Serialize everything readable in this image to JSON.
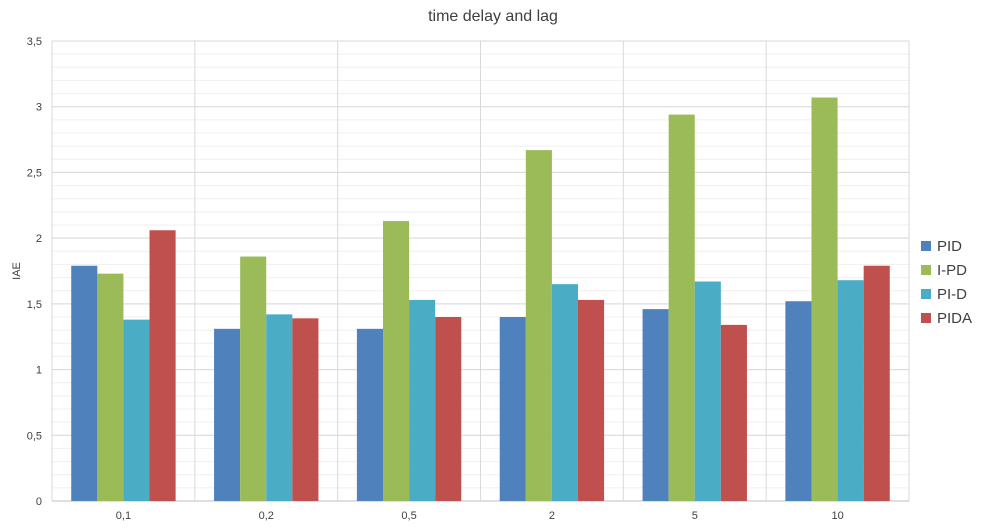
{
  "chart_data": {
    "type": "bar",
    "title": "time delay and lag",
    "xlabel": "",
    "ylabel": "IAE",
    "ylim": [
      0,
      3.5
    ],
    "yticks": [
      "0",
      "0,5",
      "1",
      "1,5",
      "2",
      "2,5",
      "3",
      "3,5"
    ],
    "categories": [
      "0,1",
      "0,2",
      "0,5",
      "2",
      "5",
      "10"
    ],
    "grid": true,
    "legend_position": "right",
    "series": [
      {
        "name": "PID",
        "color": "#4F81BD",
        "values": [
          1.79,
          1.31,
          1.31,
          1.4,
          1.46,
          1.52
        ]
      },
      {
        "name": "I-PD",
        "color": "#9BBB59",
        "values": [
          1.73,
          1.86,
          2.13,
          2.67,
          2.94,
          3.07
        ]
      },
      {
        "name": "PI-D",
        "color": "#4BACC6",
        "values": [
          1.38,
          1.42,
          1.53,
          1.65,
          1.67,
          1.68
        ]
      },
      {
        "name": "PIDA",
        "color": "#C0504D",
        "values": [
          2.06,
          1.39,
          1.4,
          1.53,
          1.34,
          1.79
        ]
      }
    ]
  }
}
